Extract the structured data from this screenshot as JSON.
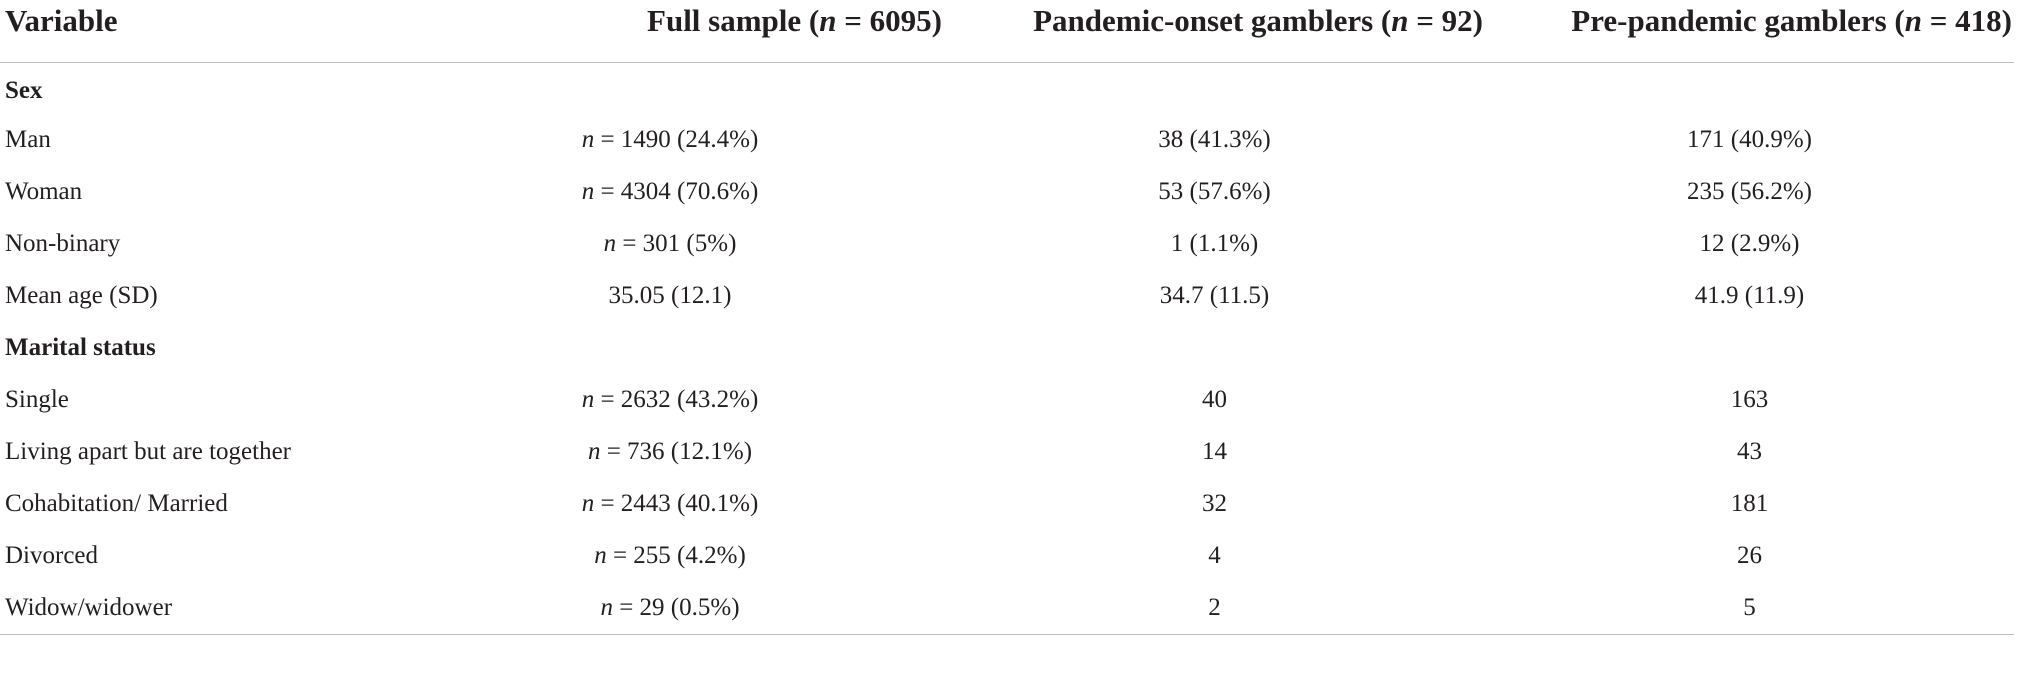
{
  "table": {
    "headers": [
      {
        "text": "Variable"
      },
      {
        "prefix": "Full sample (",
        "italic": "n",
        "suffix": " = 6095)"
      },
      {
        "prefix": "Pandemic-onset gamblers (",
        "italic": "n",
        "suffix": " = 92)"
      },
      {
        "prefix": "Pre-pandemic gamblers (",
        "italic": "n",
        "suffix": " = 418)"
      }
    ],
    "sections": [
      {
        "title": "Sex",
        "rows": [
          {
            "label": "Man",
            "full_n": "n",
            "full_rest": " = 1490 (24.4%)",
            "pandemic": "38 (41.3%)",
            "pre": "171 (40.9%)"
          },
          {
            "label": "Woman",
            "full_n": "n",
            "full_rest": " = 4304 (70.6%)",
            "pandemic": "53 (57.6%)",
            "pre": "235 (56.2%)"
          },
          {
            "label": "Non-binary",
            "full_n": "n",
            "full_rest": " = 301 (5%)",
            "pandemic": "1 (1.1%)",
            "pre": "12 (2.9%)"
          },
          {
            "label": "Mean age (SD)",
            "full_n": "",
            "full_rest": "35.05 (12.1)",
            "pandemic": "34.7 (11.5)",
            "pre": "41.9 (11.9)"
          }
        ]
      },
      {
        "title": "Marital status",
        "rows": [
          {
            "label": "Single",
            "full_n": "n",
            "full_rest": " = 2632 (43.2%)",
            "pandemic": "40",
            "pre": "163"
          },
          {
            "label": "Living apart but are together",
            "full_n": "n",
            "full_rest": " = 736 (12.1%)",
            "pandemic": "14",
            "pre": "43"
          },
          {
            "label": "Cohabitation/ Married",
            "full_n": "n",
            "full_rest": " = 2443 (40.1%)",
            "pandemic": "32",
            "pre": "181"
          },
          {
            "label": "Divorced",
            "full_n": "n",
            "full_rest": " = 255 (4.2%)",
            "pandemic": "4",
            "pre": "26"
          },
          {
            "label": "Widow/widower",
            "full_n": "n",
            "full_rest": " = 29 (0.5%)",
            "pandemic": "2",
            "pre": "5"
          }
        ]
      }
    ]
  }
}
